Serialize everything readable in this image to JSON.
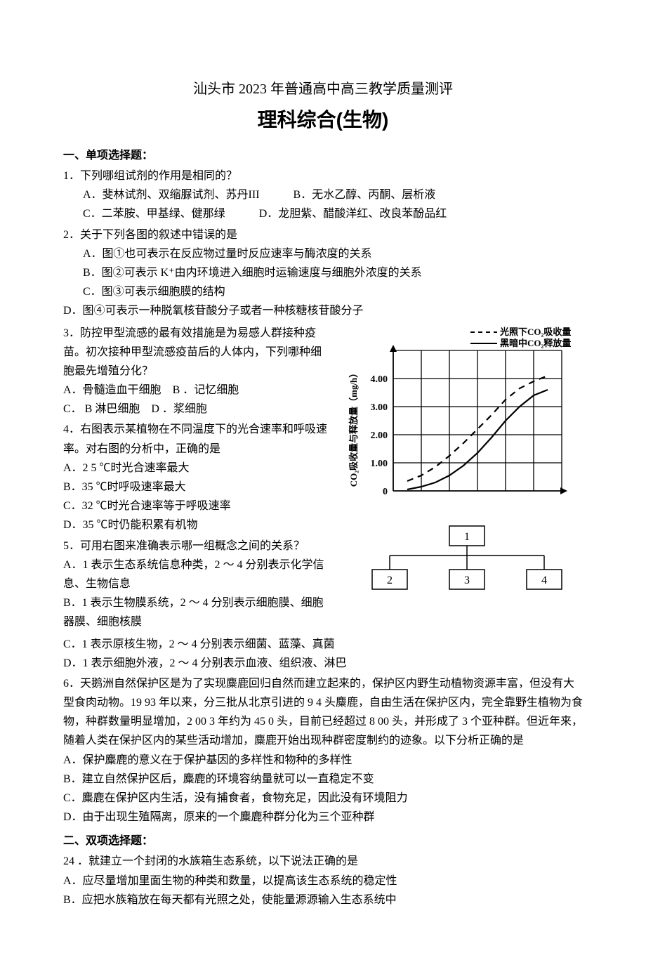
{
  "header": {
    "subtitle": "汕头市 2023 年普通高中高三教学质量测评",
    "title": "理科综合(生物)"
  },
  "sections": {
    "s1": "一、单项选择题：",
    "s2": "二、双项选择题："
  },
  "q1": {
    "stem": "1．下列哪组试剂的作用是相同的？",
    "A": "A．斐林试剂、双缩脲试剂、苏丹III",
    "B": "B．无水乙醇、丙酮、层析液",
    "C": "C．二苯胺、甲基绿、健那绿",
    "D": "D．龙胆紫、醋酸洋红、改良苯酚品红"
  },
  "q2": {
    "stem": "2．关于下列各图的叙述中错误的是",
    "A": "A．图①也可表示在反应物过量时反应速率与酶浓度的关系",
    "B": "B．图②可表示 K⁺由内环境进入细胞时运输速度与细胞外浓度的关系",
    "C": "C．图③可表示细胞膜的结构",
    "D": "D．图④可表示一种脱氧核苷酸分子或者一种核糖核苷酸分子"
  },
  "q3": {
    "stem": "3．防控甲型流感的最有效措施是为易感人群接种疫苗。初次接种甲型流感疫苗后的人体内，下列哪种细胞最先增殖分化？",
    "A": "A．骨髓造血干细胞",
    "B": "B ．记忆细胞",
    "C": "C． B 淋巴细胞",
    "D": "D ．浆细胞"
  },
  "q4": {
    "stem": "4．右图表示某植物在不同温度下的光合速率和呼吸速率。对右图的分析中，正确的是",
    "A": "A．2 5 ℃时光合速率最大",
    "B": "B．35 ℃时呼吸速率最大",
    "C": "C．32 ℃时光合速率等于呼吸速率",
    "D": "D．35 ℃时仍能积累有机物"
  },
  "q5": {
    "stem": "5．可用右图来准确表示哪一组概念之间的关系？",
    "A": "A．1 表示生态系统信息种类，2 ～ 4 分别表示化学信息、生物信息",
    "B": "B．1 表示生物膜系统，2 ～ 4 分别表示细胞膜、细胞器膜、细胞核膜",
    "C": "C．1 表示原核生物，2 ～ 4 分别表示细菌、蓝藻、真菌",
    "D": "D．1 表示细胞外液，2 ～ 4 分别表示血液、组织液、淋巴"
  },
  "q6": {
    "stem": "6．天鹅洲自然保护区是为了实现麋鹿回归自然而建立起来的，保护区内野生动植物资源丰富，但没有大型食肉动物。19 93 年以来，分三批从北京引进的 9 4 头麋鹿，自由生活在保护区内，完全靠野生植物为食物，种群数量明显增加，2 00 3 年约为 45 0 头，目前已经超过 8 00 头，并形成了 3 个亚种群。但近年来，随着人类在保护区内的某些活动增加，麋鹿开始出现种群密度制约的迹象。以下分析正确的是",
    "A": "A．保护麋鹿的意义在于保护基因的多样性和物种的多样性",
    "B": "B．建立自然保护区后，麋鹿的环境容纳量就可以一直稳定不变",
    "C": "C．麋鹿在保护区内生活，没有捕食者，食物充足，因此没有环境阻力",
    "D": "D．由于出现生殖隔离，原来的一个麋鹿种群分化为三个亚种群"
  },
  "q24": {
    "stem": "24 ．就建立一个封闭的水族箱生态系统，以下说法正确的是",
    "A": "A．应尽量增加里面生物的种类和数量，以提高该生态系统的稳定性",
    "B": "B．应把水族箱放在每天都有光照之处，使能量源源输入生态系统中"
  },
  "chart": {
    "legend1": "光照下CO₂吸收量",
    "legend2": "黑暗中CO₂释放量",
    "ylabel": "CO₂吸收量与释放量（mg/h）",
    "ylim": [
      0,
      4.5
    ],
    "yticks": [
      0,
      1.0,
      2.0,
      3.0,
      4.0
    ],
    "ytick_labels": [
      "0",
      "1.00",
      "2.00",
      "3.00",
      "4.00"
    ],
    "grid_color": "#000000",
    "background": "#ffffff",
    "solid_line": {
      "points": [
        [
          0.5,
          0.05
        ],
        [
          1,
          0.15
        ],
        [
          1.5,
          0.3
        ],
        [
          2,
          0.55
        ],
        [
          2.5,
          0.9
        ],
        [
          3,
          1.35
        ],
        [
          3.5,
          1.9
        ],
        [
          4,
          2.5
        ],
        [
          4.5,
          3.0
        ],
        [
          5,
          3.4
        ],
        [
          5.5,
          3.6
        ]
      ],
      "color": "#000000",
      "width": 2
    },
    "dashed_line": {
      "points": [
        [
          0.5,
          0.35
        ],
        [
          1,
          0.55
        ],
        [
          1.5,
          0.85
        ],
        [
          2,
          1.25
        ],
        [
          2.5,
          1.7
        ],
        [
          3,
          2.2
        ],
        [
          3.5,
          2.7
        ],
        [
          4,
          3.25
        ],
        [
          4.5,
          3.65
        ],
        [
          5,
          3.9
        ],
        [
          5.5,
          4.1
        ]
      ],
      "color": "#000000",
      "width": 2,
      "dash": "8,6"
    }
  },
  "tree": {
    "node1": "1",
    "node2": "2",
    "node3": "3",
    "node4": "4"
  }
}
